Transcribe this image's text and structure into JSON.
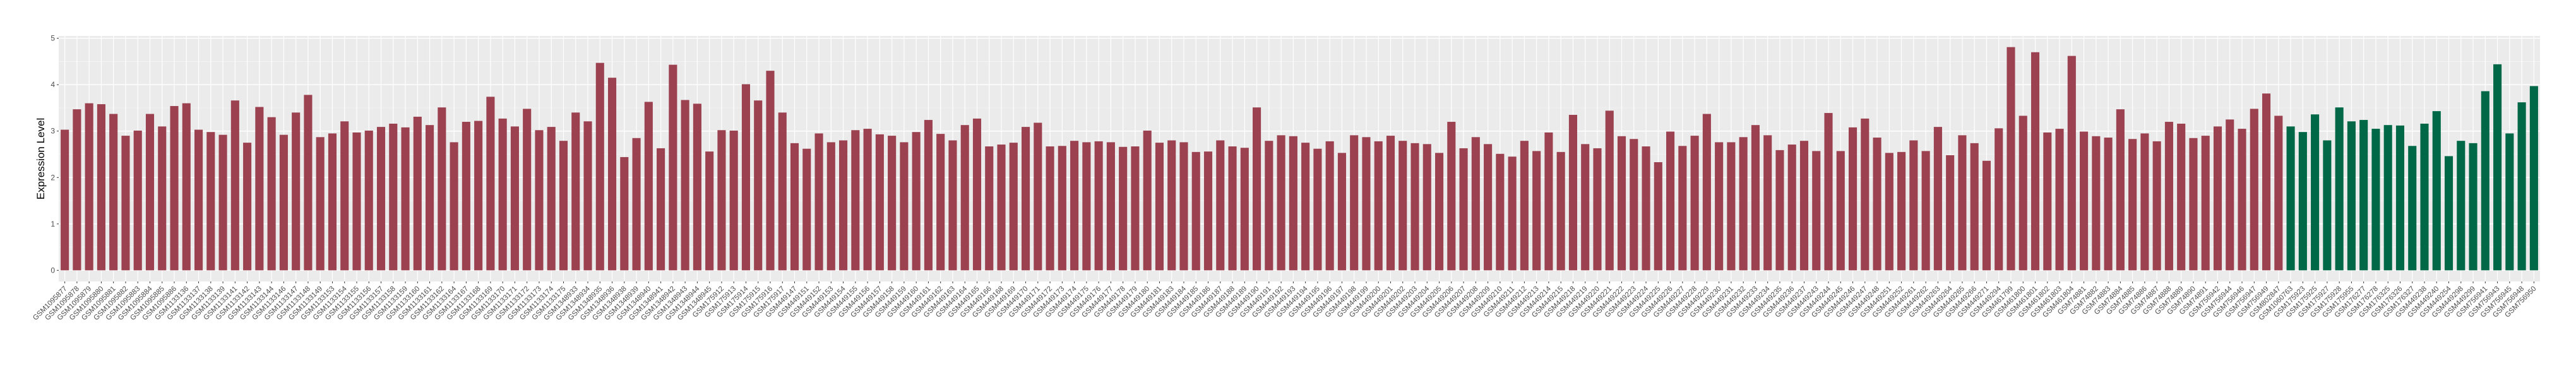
{
  "chart_data": {
    "type": "bar",
    "title": "",
    "xlabel": "",
    "ylabel": "Expression Level",
    "ylim": [
      -0.24,
      5.05
    ],
    "yticks": [
      0,
      1,
      2,
      3,
      4,
      5
    ],
    "grid": true,
    "panel_background": "#EBEBEB",
    "legend": "none",
    "series": [
      {
        "color": "#9B4150",
        "categories": [
          "GSM1095877",
          "GSM1095878",
          "GSM1095879",
          "GSM1095880",
          "GSM1095881",
          "GSM1095882",
          "GSM1095883",
          "GSM1095884",
          "GSM1095885",
          "GSM1095886",
          "GSM1133136",
          "GSM1133137",
          "GSM1133138",
          "GSM1133139",
          "GSM1133141",
          "GSM1133142",
          "GSM1133143",
          "GSM1133144",
          "GSM1133146",
          "GSM1133147",
          "GSM1133148",
          "GSM1133149",
          "GSM1133153",
          "GSM1133154",
          "GSM1133155",
          "GSM1133156",
          "GSM1133157",
          "GSM1133158",
          "GSM1133159",
          "GSM1133160",
          "GSM1133161",
          "GSM1133162",
          "GSM1133164",
          "GSM1133167",
          "GSM1133168",
          "GSM1133169",
          "GSM1133170",
          "GSM1133171",
          "GSM1133172",
          "GSM1133173",
          "GSM1133174",
          "GSM1133175",
          "GSM1348933",
          "GSM1348934",
          "GSM1348935",
          "GSM1348936",
          "GSM1348938",
          "GSM1348939",
          "GSM1348940",
          "GSM1348941",
          "GSM1348942",
          "GSM1348943",
          "GSM1348944",
          "GSM1348945",
          "GSM175912",
          "GSM175913",
          "GSM175914",
          "GSM175915",
          "GSM175916",
          "GSM175917",
          "GSM449147",
          "GSM449151",
          "GSM449152",
          "GSM449153",
          "GSM449154",
          "GSM449155",
          "GSM449156",
          "GSM449157",
          "GSM449158",
          "GSM449159",
          "GSM449160",
          "GSM449161",
          "GSM449162",
          "GSM449163",
          "GSM449164",
          "GSM449165",
          "GSM449166",
          "GSM449168",
          "GSM449169",
          "GSM449170",
          "GSM449171",
          "GSM449172",
          "GSM449173",
          "GSM449174",
          "GSM449175",
          "GSM449176",
          "GSM449177",
          "GSM449178",
          "GSM449179",
          "GSM449180",
          "GSM449181",
          "GSM449183",
          "GSM449184",
          "GSM449185",
          "GSM449186",
          "GSM449187",
          "GSM449188",
          "GSM449189",
          "GSM449190",
          "GSM449191",
          "GSM449192",
          "GSM449193",
          "GSM449194",
          "GSM449195",
          "GSM449196",
          "GSM449197",
          "GSM449198",
          "GSM449199",
          "GSM449200",
          "GSM449201",
          "GSM449202",
          "GSM449203",
          "GSM449204",
          "GSM449205",
          "GSM449206",
          "GSM449207",
          "GSM449208",
          "GSM449209",
          "GSM449210",
          "GSM449211",
          "GSM449212",
          "GSM449213",
          "GSM449214",
          "GSM449215",
          "GSM449218",
          "GSM449219",
          "GSM449220",
          "GSM449221",
          "GSM449222",
          "GSM449223",
          "GSM449224",
          "GSM449225",
          "GSM449226",
          "GSM449227",
          "GSM449228",
          "GSM449229",
          "GSM449230",
          "GSM449231",
          "GSM449232",
          "GSM449233",
          "GSM449234",
          "GSM449235",
          "GSM449236",
          "GSM449237",
          "GSM449243",
          "GSM449244",
          "GSM449245",
          "GSM449246",
          "GSM449247",
          "GSM449248",
          "GSM449251",
          "GSM449252",
          "GSM449261",
          "GSM449262",
          "GSM449263",
          "GSM449264",
          "GSM449265",
          "GSM449266",
          "GSM449271",
          "GSM449294",
          "GSM461799",
          "GSM461800",
          "GSM461801",
          "GSM461802",
          "GSM461803",
          "GSM461804",
          "GSM74881",
          "GSM74882",
          "GSM74883",
          "GSM74884",
          "GSM74885",
          "GSM74886",
          "GSM74887",
          "GSM74888",
          "GSM74889",
          "GSM74890",
          "GSM74891",
          "GSM756942",
          "GSM756944",
          "GSM756946",
          "GSM756947",
          "GSM756949",
          "GSM802847"
        ],
        "values": [
          3.03,
          3.47,
          3.6,
          3.58,
          3.37,
          2.9,
          3.01,
          3.37,
          3.1,
          3.54,
          3.6,
          3.03,
          2.98,
          2.92,
          3.66,
          2.75,
          3.52,
          3.3,
          2.92,
          3.4,
          3.78,
          2.87,
          2.95,
          3.21,
          2.97,
          3.01,
          3.09,
          3.16,
          3.08,
          3.31,
          3.13,
          3.51,
          2.76,
          3.2,
          3.22,
          3.74,
          3.27,
          3.1,
          3.48,
          3.02,
          3.09,
          2.79,
          3.4,
          3.21,
          4.47,
          4.15,
          2.44,
          2.85,
          3.63,
          2.63,
          4.43,
          3.67,
          3.59,
          2.56,
          3.02,
          3.01,
          4.01,
          3.66,
          4.3,
          3.4,
          2.74,
          2.62,
          2.95,
          2.76,
          2.8,
          3.02,
          3.05,
          2.93,
          2.9,
          2.76,
          2.98,
          3.24,
          2.94,
          2.8,
          3.13,
          3.27,
          2.67,
          2.71,
          2.75,
          3.09,
          3.18,
          2.67,
          2.68,
          2.79,
          2.76,
          2.78,
          2.76,
          2.66,
          2.67,
          3.01,
          2.75,
          2.8,
          2.76,
          2.55,
          2.56,
          2.8,
          2.67,
          2.64,
          3.51,
          2.79,
          2.91,
          2.89,
          2.75,
          2.62,
          2.78,
          2.53,
          2.91,
          2.87,
          2.78,
          2.9,
          2.79,
          2.74,
          2.72,
          2.53,
          3.2,
          2.63,
          2.87,
          2.72,
          2.51,
          2.45,
          2.79,
          2.57,
          2.97,
          2.55,
          3.35,
          2.72,
          2.63,
          3.44,
          2.89,
          2.83,
          2.67,
          2.33,
          2.99,
          2.68,
          2.9,
          3.37,
          2.76,
          2.76,
          2.87,
          3.13,
          2.91,
          2.59,
          2.71,
          2.79,
          2.57,
          3.39,
          2.57,
          3.08,
          3.27,
          2.86,
          2.53,
          2.55,
          2.8,
          2.57,
          3.09,
          2.48,
          2.91,
          2.74,
          2.36,
          3.06,
          4.81,
          3.33,
          4.7,
          2.97,
          3.05,
          4.62,
          2.99,
          2.89,
          2.86,
          3.47,
          2.83,
          2.95,
          2.78,
          3.2,
          3.16,
          2.85,
          2.9,
          3.1,
          3.25,
          3.05,
          3.48,
          3.81,
          3.33
        ]
      },
      {
        "color": "#006846",
        "categories": [
          "GSM1060763",
          "GSM175923",
          "GSM175925",
          "GSM175927",
          "GSM175928",
          "GSM175955",
          "GSM176277",
          "GSM176278",
          "GSM176325",
          "GSM176326",
          "GSM176327",
          "GSM449238",
          "GSM449240",
          "GSM449254",
          "GSM449298",
          "GSM449299",
          "GSM756941",
          "GSM756943",
          "GSM756945",
          "GSM756948",
          "GSM756950"
        ],
        "values": [
          3.1,
          2.98,
          3.36,
          2.8,
          3.51,
          3.21,
          3.24,
          3.05,
          3.13,
          3.12,
          2.68,
          3.16,
          3.43,
          2.46,
          2.79,
          2.74,
          3.86,
          4.44,
          2.95,
          3.62,
          3.97
        ]
      }
    ]
  }
}
